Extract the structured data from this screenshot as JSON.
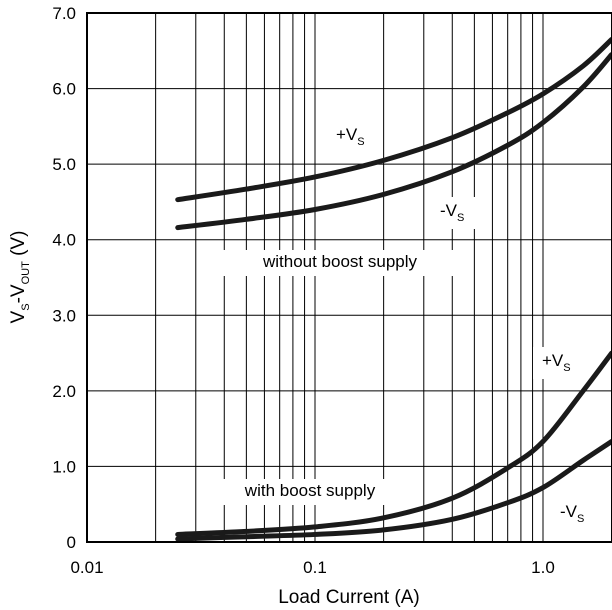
{
  "chart_data": {
    "type": "line",
    "title": "",
    "x_scale": "log",
    "xlim": [
      0.01,
      2.0
    ],
    "ylim": [
      0,
      7.0
    ],
    "grid": true,
    "xlabel": "Load Current (A)",
    "ylabel": {
      "base": "V",
      "sub1": "S",
      "mid": "-V",
      "sub2": "OUT",
      "tail": " (V)"
    },
    "x_ticks": [
      {
        "value": 0.01,
        "label": "0.01"
      },
      {
        "value": 0.1,
        "label": "0.1"
      },
      {
        "value": 1.0,
        "label": "1.0"
      }
    ],
    "y_ticks": [
      {
        "value": 0,
        "label": "0"
      },
      {
        "value": 1.0,
        "label": "1.0"
      },
      {
        "value": 2.0,
        "label": "2.0"
      },
      {
        "value": 3.0,
        "label": "3.0"
      },
      {
        "value": 4.0,
        "label": "4.0"
      },
      {
        "value": 5.0,
        "label": "5.0"
      },
      {
        "value": 6.0,
        "label": "6.0"
      },
      {
        "value": 7.0,
        "label": "7.0"
      }
    ],
    "series": [
      {
        "name": "+VS without boost supply",
        "x": [
          0.025,
          0.05,
          0.1,
          0.2,
          0.4,
          0.7,
          1.0,
          1.5,
          2.0
        ],
        "y": [
          4.53,
          4.67,
          4.83,
          5.05,
          5.35,
          5.68,
          5.93,
          6.3,
          6.65
        ]
      },
      {
        "name": "-VS without boost supply",
        "x": [
          0.025,
          0.05,
          0.1,
          0.2,
          0.4,
          0.7,
          1.0,
          1.5,
          2.0
        ],
        "y": [
          4.16,
          4.27,
          4.4,
          4.6,
          4.9,
          5.25,
          5.55,
          6.02,
          6.45
        ]
      },
      {
        "name": "+VS with boost supply",
        "x": [
          0.025,
          0.05,
          0.1,
          0.2,
          0.4,
          0.7,
          1.0,
          1.5,
          2.0
        ],
        "y": [
          0.1,
          0.14,
          0.2,
          0.32,
          0.58,
          0.98,
          1.33,
          2.0,
          2.5
        ]
      },
      {
        "name": "-VS with boost supply",
        "x": [
          0.025,
          0.05,
          0.1,
          0.2,
          0.4,
          0.7,
          1.0,
          1.5,
          2.0
        ],
        "y": [
          0.04,
          0.07,
          0.1,
          0.16,
          0.3,
          0.52,
          0.72,
          1.08,
          1.33
        ]
      }
    ],
    "annotations": {
      "plus_vs_top": {
        "main": "+V",
        "sub": "S"
      },
      "minus_vs_top": {
        "main": "-V",
        "sub": "S"
      },
      "without_boost": "without boost supply",
      "plus_vs_bottom": {
        "main": "+V",
        "sub": "S"
      },
      "minus_vs_bottom": {
        "main": "-V",
        "sub": "S"
      },
      "with_boost": "with boost supply"
    }
  }
}
